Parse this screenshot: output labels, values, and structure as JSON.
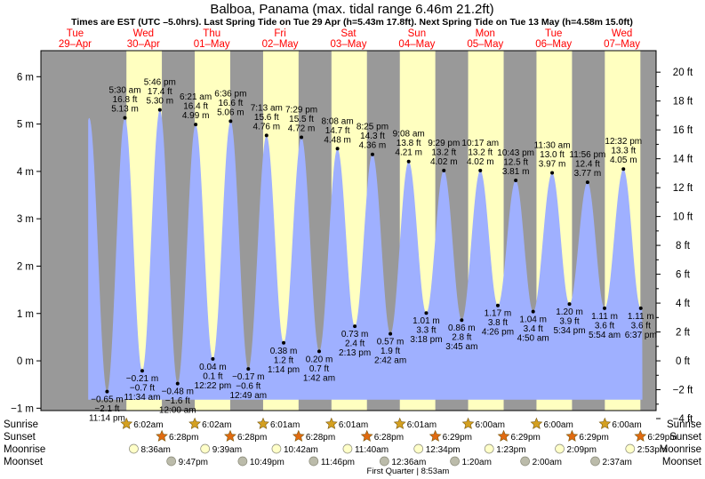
{
  "title": "Balboa, Panama (max. tidal range 6.46m 21.2ft)",
  "subtitle": "Times are EST (UTC –5.0hrs). Last Spring Tide on Tue 29 Apr (h=5.43m 17.8ft). Next Spring Tide on Tue 13 May (h=4.58m 15.0ft)",
  "colors": {
    "night": "#999999",
    "day": "#ffffc0",
    "tide": "#9fb0ff",
    "day_label": "#ff0000",
    "sun": "#d4a020",
    "sunset": "#e06a10",
    "moon": "#ffffc8",
    "moon_set": "#bbbbaa"
  },
  "chart_data": {
    "type": "area",
    "y_unit_left": "m",
    "y_unit_right": "ft",
    "ylim": [
      -1.05,
      6.55
    ],
    "y_ticks_m": [
      -1,
      0,
      1,
      2,
      3,
      4,
      5,
      6
    ],
    "y_tick_labels_m": [
      "−1 m",
      "0 m",
      "1 m",
      "2 m",
      "3 m",
      "4 m",
      "5 m",
      "6 m"
    ],
    "y_ticks_ft": [
      -4,
      -2,
      0,
      2,
      4,
      6,
      8,
      10,
      12,
      14,
      16,
      18,
      20
    ],
    "y_tick_labels_ft": [
      "−4 ft",
      "−2 ft",
      "0 ft",
      "2 ft",
      "4 ft",
      "6 ft",
      "8 ft",
      "10 ft",
      "12 ft",
      "14 ft",
      "16 ft",
      "18 ft",
      "20 ft"
    ],
    "days": [
      {
        "dow": "Tue",
        "date": "29–Apr",
        "t": 0
      },
      {
        "dow": "Wed",
        "date": "30–Apr",
        "t": 24
      },
      {
        "dow": "Thu",
        "date": "01–May",
        "t": 48
      },
      {
        "dow": "Fri",
        "date": "02–May",
        "t": 72
      },
      {
        "dow": "Sat",
        "date": "03–May",
        "t": 96
      },
      {
        "dow": "Sun",
        "date": "04–May",
        "t": 120
      },
      {
        "dow": "Mon",
        "date": "05–May",
        "t": 144
      },
      {
        "dow": "Tue",
        "date": "06–May",
        "t": 168
      },
      {
        "dow": "Wed",
        "date": "07–May",
        "t": 192
      }
    ],
    "daylight": [
      {
        "rise": 30.03,
        "set": 42.47
      },
      {
        "rise": 54.03,
        "set": 66.47
      },
      {
        "rise": 78.02,
        "set": 90.47
      },
      {
        "rise": 102.02,
        "set": 114.47
      },
      {
        "rise": 126.02,
        "set": 138.48
      },
      {
        "rise": 150.0,
        "set": 162.48
      },
      {
        "rise": 174.0,
        "set": 186.48
      },
      {
        "rise": 198.0,
        "set": 210.48
      }
    ],
    "x_start_h": 16.6,
    "x_end_h": 211.2,
    "extremes": [
      {
        "t": 23.23,
        "m": -0.65,
        "type": "low",
        "l1": "−0.65 m",
        "l2": "−2.1 ft",
        "l3": "11:14 pm"
      },
      {
        "t": 29.5,
        "m": 5.13,
        "type": "high",
        "l1": "5:30 am",
        "l2": "16.8 ft",
        "l3": "5.13 m"
      },
      {
        "t": 35.57,
        "m": -0.21,
        "type": "low",
        "l1": "−0.21 m",
        "l2": "−0.7 ft",
        "l3": "11:34 am"
      },
      {
        "t": 41.77,
        "m": 5.3,
        "type": "high",
        "l1": "5:46 pm",
        "l2": "17.4 ft",
        "l3": "5.30 m"
      },
      {
        "t": 48.0,
        "m": -0.48,
        "type": "low",
        "l1": "−0.48 m",
        "l2": "−1.6 ft",
        "l3": "12:00 am"
      },
      {
        "t": 54.35,
        "m": 4.99,
        "type": "high",
        "l1": "6:21 am",
        "l2": "16.4 ft",
        "l3": "4.99 m"
      },
      {
        "t": 60.37,
        "m": 0.04,
        "type": "low",
        "l1": "0.04 m",
        "l2": "0.1 ft",
        "l3": "12:22 pm"
      },
      {
        "t": 66.6,
        "m": 5.06,
        "type": "high",
        "l1": "6:36 pm",
        "l2": "16.6 ft",
        "l3": "5.06 m"
      },
      {
        "t": 72.82,
        "m": -0.17,
        "type": "low",
        "l1": "−0.17 m",
        "l2": "−0.6 ft",
        "l3": "12:49 am"
      },
      {
        "t": 79.22,
        "m": 4.76,
        "type": "high",
        "l1": "7:13 am",
        "l2": "15.6 ft",
        "l3": "4.76 m"
      },
      {
        "t": 85.23,
        "m": 0.38,
        "type": "low",
        "l1": "0.38 m",
        "l2": "1.2 ft",
        "l3": "1:14 pm"
      },
      {
        "t": 91.48,
        "m": 4.72,
        "type": "high",
        "l1": "7:29 pm",
        "l2": "15.5 ft",
        "l3": "4.72 m"
      },
      {
        "t": 97.7,
        "m": 0.2,
        "type": "low",
        "l1": "0.20 m",
        "l2": "0.7 ft",
        "l3": "1:42 am"
      },
      {
        "t": 104.13,
        "m": 4.48,
        "type": "high",
        "l1": "8:08 am",
        "l2": "14.7 ft",
        "l3": "4.48 m"
      },
      {
        "t": 110.22,
        "m": 0.73,
        "type": "low",
        "l1": "0.73 m",
        "l2": "2.4 ft",
        "l3": "2:13 pm"
      },
      {
        "t": 116.42,
        "m": 4.36,
        "type": "high",
        "l1": "8:25 pm",
        "l2": "14.3 ft",
        "l3": "4.36 m"
      },
      {
        "t": 122.7,
        "m": 0.57,
        "type": "low",
        "l1": "0.57 m",
        "l2": "1.9 ft",
        "l3": "2:42 am"
      },
      {
        "t": 129.13,
        "m": 4.21,
        "type": "high",
        "l1": "9:08 am",
        "l2": "13.8 ft",
        "l3": "4.21 m"
      },
      {
        "t": 135.3,
        "m": 1.01,
        "type": "low",
        "l1": "1.01 m",
        "l2": "3.3 ft",
        "l3": "3:18 pm"
      },
      {
        "t": 141.48,
        "m": 4.02,
        "type": "high",
        "l1": "9:29 pm",
        "l2": "13.2 ft",
        "l3": "4.02 m"
      },
      {
        "t": 147.75,
        "m": 0.86,
        "type": "low",
        "l1": "0.86 m",
        "l2": "2.8 ft",
        "l3": "3:45 am"
      },
      {
        "t": 154.28,
        "m": 4.02,
        "type": "high",
        "l1": "10:17 am",
        "l2": "13.2 ft",
        "l3": "4.02 m"
      },
      {
        "t": 160.43,
        "m": 1.17,
        "type": "low",
        "l1": "1.17 m",
        "l2": "3.8 ft",
        "l3": "4:26 pm"
      },
      {
        "t": 166.72,
        "m": 3.81,
        "type": "high",
        "l1": "10:43 pm",
        "l2": "12.5 ft",
        "l3": "3.81 m"
      },
      {
        "t": 172.83,
        "m": 1.04,
        "type": "low",
        "l1": "1.04 m",
        "l2": "3.4 ft",
        "l3": "4:50 am"
      },
      {
        "t": 179.5,
        "m": 3.97,
        "type": "high",
        "l1": "11:30 am",
        "l2": "13.0 ft",
        "l3": "3.97 m"
      },
      {
        "t": 185.57,
        "m": 1.2,
        "type": "low",
        "l1": "1.20 m",
        "l2": "3.9 ft",
        "l3": "5:34 pm"
      },
      {
        "t": 191.93,
        "m": 3.77,
        "type": "high",
        "l1": "11:56 pm",
        "l2": "12.4 ft",
        "l3": "3.77 m"
      },
      {
        "t": 197.9,
        "m": 1.11,
        "type": "low",
        "l1": "1.11 m",
        "l2": "3.6 ft",
        "l3": "5:54 am"
      },
      {
        "t": 204.53,
        "m": 4.05,
        "type": "high",
        "l1": "12:32 pm",
        "l2": "13.3 ft",
        "l3": "4.05 m"
      },
      {
        "t": 210.62,
        "m": 1.11,
        "type": "low",
        "l1": "1.11 m",
        "l2": "3.6 ft",
        "l3": "6:37 pm"
      }
    ],
    "rows": {
      "sunrise": {
        "label": "Sunrise",
        "events": [
          {
            "t": 30.03,
            "label": "6:02am"
          },
          {
            "t": 54.03,
            "label": "6:02am"
          },
          {
            "t": 78.02,
            "label": "6:01am"
          },
          {
            "t": 102.02,
            "label": "6:01am"
          },
          {
            "t": 126.02,
            "label": "6:01am"
          },
          {
            "t": 150.0,
            "label": "6:00am"
          },
          {
            "t": 174.0,
            "label": "6:00am"
          },
          {
            "t": 198.0,
            "label": "6:00am"
          }
        ]
      },
      "sunset": {
        "label": "Sunset",
        "events": [
          {
            "t": 42.47,
            "label": "6:28pm"
          },
          {
            "t": 66.47,
            "label": "6:28pm"
          },
          {
            "t": 90.47,
            "label": "6:28pm"
          },
          {
            "t": 114.47,
            "label": "6:28pm"
          },
          {
            "t": 138.48,
            "label": "6:29pm"
          },
          {
            "t": 162.48,
            "label": "6:29pm"
          },
          {
            "t": 186.48,
            "label": "6:29pm"
          },
          {
            "t": 210.48,
            "label": "6:29pm"
          }
        ]
      },
      "moonrise": {
        "label": "Moonrise",
        "events": [
          {
            "t": 32.6,
            "label": "8:36am"
          },
          {
            "t": 57.65,
            "label": "9:39am"
          },
          {
            "t": 82.7,
            "label": "10:42am"
          },
          {
            "t": 107.67,
            "label": "11:40am"
          },
          {
            "t": 132.57,
            "label": "12:34pm"
          },
          {
            "t": 157.38,
            "label": "1:23pm"
          },
          {
            "t": 182.15,
            "label": "2:09pm"
          },
          {
            "t": 206.88,
            "label": "2:53pm"
          }
        ]
      },
      "moonset": {
        "label": "Moonset",
        "events": [
          {
            "t": 45.78,
            "label": "9:47pm"
          },
          {
            "t": 70.82,
            "label": "10:49pm"
          },
          {
            "t": 95.77,
            "label": "11:46pm"
          },
          {
            "t": 120.6,
            "label": "12:36am"
          },
          {
            "t": 145.33,
            "label": "1:20am"
          },
          {
            "t": 170.0,
            "label": "2:00am"
          },
          {
            "t": 194.62,
            "label": "2:37am"
          }
        ]
      }
    },
    "moon_phase": {
      "t": 128.88,
      "label": "First Quarter | 8:53am"
    }
  }
}
